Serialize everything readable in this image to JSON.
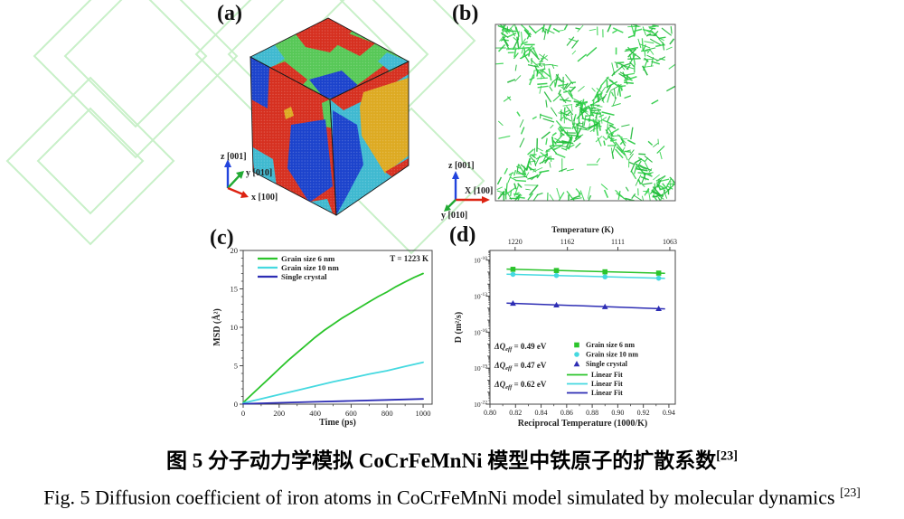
{
  "figure_labels": {
    "a": "(a)",
    "b": "(b)",
    "c": "(c)",
    "d": "(d)"
  },
  "triad_a": {
    "z": "z [001]",
    "y": "y [010]",
    "x": "x [100]"
  },
  "triad_b": {
    "z": "z [001]",
    "x": "X [100]",
    "y": "y [010]"
  },
  "colors": {
    "green": "#2bc42b",
    "cyan": "#45d9e0",
    "navy": "#2d2db4",
    "axis_z": "#2244dd",
    "axis_y": "#22aa33",
    "axis_x": "#dd2211",
    "grain_red": "#d63020",
    "grain_blue": "#1c43cc",
    "grain_cyan": "#3fb9d0",
    "grain_green": "#57c857",
    "grain_yellow": "#ddaa22",
    "dislocation_green": "#25c93f",
    "watermark_green": "#c8f0c8",
    "frame": "#444444",
    "text": "#222222"
  },
  "chart_data": [
    {
      "id": "c",
      "type": "line",
      "xlabel": "Time (ps)",
      "ylabel": "MSD (Å²)",
      "xlim": [
        0,
        1050
      ],
      "ylim": [
        0,
        20
      ],
      "xticks": [
        0,
        200,
        400,
        600,
        800,
        1000
      ],
      "x_minor_step": 100,
      "yticks": [
        0,
        5,
        10,
        15,
        20
      ],
      "y_minor_step": 1,
      "annotation": "T = 1223 K",
      "legend_position": "top-left",
      "grid": false,
      "series": [
        {
          "name": "Grain size 6 nm",
          "color_key": "green",
          "points": [
            [
              0,
              0.2
            ],
            [
              50,
              1.3
            ],
            [
              100,
              2.4
            ],
            [
              150,
              3.5
            ],
            [
              200,
              4.6
            ],
            [
              250,
              5.7
            ],
            [
              300,
              6.7
            ],
            [
              350,
              7.7
            ],
            [
              400,
              8.7
            ],
            [
              450,
              9.6
            ],
            [
              500,
              10.4
            ],
            [
              550,
              11.2
            ],
            [
              600,
              11.9
            ],
            [
              650,
              12.6
            ],
            [
              700,
              13.3
            ],
            [
              750,
              14.0
            ],
            [
              800,
              14.6
            ],
            [
              850,
              15.3
            ],
            [
              900,
              15.9
            ],
            [
              950,
              16.5
            ],
            [
              1000,
              17.0
            ]
          ]
        },
        {
          "name": "Grain size 10 nm",
          "color_key": "cyan",
          "points": [
            [
              0,
              0.15
            ],
            [
              100,
              0.7
            ],
            [
              200,
              1.25
            ],
            [
              300,
              1.8
            ],
            [
              400,
              2.35
            ],
            [
              500,
              2.9
            ],
            [
              600,
              3.4
            ],
            [
              700,
              3.9
            ],
            [
              800,
              4.35
            ],
            [
              900,
              4.9
            ],
            [
              1000,
              5.45
            ]
          ]
        },
        {
          "name": "Single crystal",
          "color_key": "navy",
          "points": [
            [
              0,
              0.05
            ],
            [
              200,
              0.18
            ],
            [
              400,
              0.3
            ],
            [
              600,
              0.42
            ],
            [
              800,
              0.55
            ],
            [
              1000,
              0.68
            ]
          ]
        }
      ]
    },
    {
      "id": "d",
      "type": "scatter",
      "top_xlabel": "Temperature (K)",
      "top_xticks": [
        1220,
        1162,
        1111,
        1063
      ],
      "xlabel": "Reciprocal Temperature (1000/K)",
      "ylabel": "D (m²/s)",
      "xlim": [
        0.8,
        0.945
      ],
      "xticks": [
        0.8,
        0.82,
        0.84,
        0.86,
        0.88,
        0.9,
        0.92,
        0.94
      ],
      "x_minor_step": 0.01,
      "y_exponent_ticks": [
        -10,
        -13,
        -16,
        -19,
        -22
      ],
      "ylim_exponents": [
        -22,
        -9.2
      ],
      "x": [
        0.818,
        0.852,
        0.89,
        0.932
      ],
      "series": [
        {
          "name": "Grain size 6 nm",
          "marker": "square",
          "color_key": "green",
          "values": [
            1.7e-11,
            1.35e-11,
            1.05e-11,
            8.2e-12
          ]
        },
        {
          "name": "Grain size 10 nm",
          "marker": "circle",
          "color_key": "cyan",
          "values": [
            6.5e-12,
            5.2e-12,
            4e-12,
            3.1e-12
          ]
        },
        {
          "name": "Single crystal",
          "marker": "triangle",
          "color_key": "navy",
          "values": [
            2.5e-14,
            1.8e-14,
            1.3e-14,
            9e-15
          ]
        }
      ],
      "fit_label": "Linear Fit",
      "annotations": [
        {
          "prefix": "ΔQ",
          "sub": "eff",
          "rest": " = 0.49 eV",
          "color_key": "green"
        },
        {
          "prefix": "ΔQ",
          "sub": "eff",
          "rest": " = 0.47 eV",
          "color_key": "cyan"
        },
        {
          "prefix": "ΔQ",
          "sub": "eff",
          "rest": " = 0.62 eV",
          "color_key": "navy"
        }
      ]
    }
  ],
  "captions": {
    "zh": {
      "text": "图 5  分子动力学模拟 CoCrFeMnNi 模型中铁原子的扩散系数",
      "sup": "[23]"
    },
    "en": {
      "text": "Fig. 5 Diffusion coefficient of iron atoms in CoCrFeMnNi model simulated by molecular dynamics ",
      "sup": "[23]"
    }
  }
}
